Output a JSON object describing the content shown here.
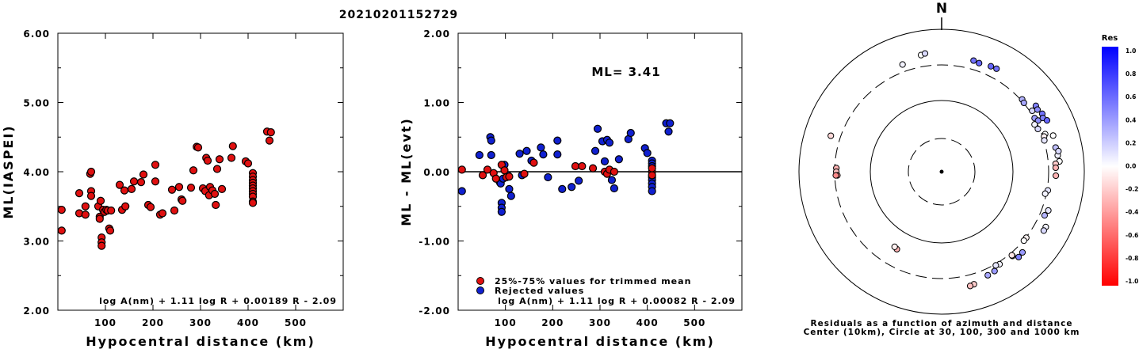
{
  "title": "20210201152729",
  "panel1": {
    "ylabel": "ML(IASPEI)",
    "xlabel": "Hypocentral distance (km)",
    "formula": "log A(nm) + 1.11 log R + 0.00189 R - 2.09",
    "yticks": [
      "6.00",
      "5.00",
      "4.00",
      "3.00",
      "2.00"
    ],
    "xticks": [
      "100",
      "200",
      "300",
      "400",
      "500"
    ]
  },
  "panel2": {
    "ylabel": "ML - ML(evt)",
    "xlabel": "Hypocentral distance (km)",
    "formula": "log A(nm) + 1.11 log R + 0.00082 R - 2.09",
    "ml_label": "ML= 3.41",
    "legend_used": "25%-75% values for trimmed mean",
    "legend_rejected": "Rejected values",
    "yticks": [
      "2.00",
      "1.00",
      "0.00",
      "-1.00",
      "-2.00"
    ],
    "xticks": [
      "100",
      "200",
      "300",
      "400",
      "500"
    ]
  },
  "panel3": {
    "north": "N",
    "caption1": "Residuals as a function of azimuth and distance",
    "caption2": "Center (10km), Circle at 30, 100, 300 and 1000 km",
    "colorbar_title": "Res",
    "colorbar_ticks": [
      "1.0",
      "0.8",
      "0.6",
      "0.4",
      "0.2",
      "0.0",
      "-0.2",
      "-0.4",
      "-0.6",
      "-0.8",
      "-1.0"
    ]
  },
  "colors": {
    "used": "#e01010",
    "rejected": "#1020d0",
    "positive": "#1a1aff",
    "negative": "#ff1a1a"
  },
  "chart_data": [
    {
      "type": "scatter",
      "title": "20210201152729",
      "xlabel": "Hypocentral distance (km)",
      "ylabel": "ML(IASPEI)",
      "xlim": [
        0,
        600
      ],
      "ylim": [
        2.0,
        6.0
      ],
      "series": [
        {
          "points": [
            [
              8,
              3.45
            ],
            [
              8,
              3.15
            ],
            [
              45,
              3.69
            ],
            [
              45,
              3.4
            ],
            [
              58,
              3.38
            ],
            [
              58,
              3.5
            ],
            [
              68,
              3.97
            ],
            [
              70,
              4.0
            ],
            [
              70,
              3.72
            ],
            [
              70,
              3.65
            ],
            [
              85,
              3.5
            ],
            [
              88,
              3.35
            ],
            [
              88,
              3.32
            ],
            [
              90,
              3.58
            ],
            [
              92,
              3.05
            ],
            [
              92,
              2.98
            ],
            [
              92,
              2.93
            ],
            [
              95,
              3.45
            ],
            [
              98,
              3.42
            ],
            [
              102,
              3.45
            ],
            [
              105,
              3.44
            ],
            [
              108,
              3.18
            ],
            [
              110,
              3.15
            ],
            [
              112,
              3.44
            ],
            [
              130,
              3.81
            ],
            [
              135,
              3.45
            ],
            [
              140,
              3.73
            ],
            [
              142,
              3.5
            ],
            [
              155,
              3.75
            ],
            [
              160,
              3.86
            ],
            [
              175,
              3.85
            ],
            [
              180,
              3.96
            ],
            [
              190,
              3.52
            ],
            [
              195,
              3.49
            ],
            [
              205,
              3.86
            ],
            [
              205,
              4.1
            ],
            [
              215,
              3.38
            ],
            [
              220,
              3.4
            ],
            [
              240,
              3.74
            ],
            [
              245,
              3.44
            ],
            [
              255,
              3.78
            ],
            [
              260,
              3.6
            ],
            [
              262,
              3.58
            ],
            [
              280,
              3.77
            ],
            [
              285,
              4.02
            ],
            [
              292,
              4.36
            ],
            [
              295,
              4.35
            ],
            [
              305,
              3.76
            ],
            [
              310,
              3.72
            ],
            [
              312,
              4.2
            ],
            [
              315,
              4.16
            ],
            [
              318,
              3.66
            ],
            [
              320,
              3.78
            ],
            [
              325,
              3.73
            ],
            [
              330,
              3.68
            ],
            [
              332,
              3.52
            ],
            [
              335,
              4.04
            ],
            [
              340,
              4.18
            ],
            [
              345,
              3.75
            ],
            [
              365,
              4.2
            ],
            [
              368,
              4.37
            ],
            [
              395,
              4.15
            ],
            [
              400,
              4.12
            ],
            [
              410,
              3.98
            ],
            [
              410,
              3.93
            ],
            [
              410,
              3.88
            ],
            [
              410,
              3.84
            ],
            [
              410,
              3.8
            ],
            [
              410,
              3.76
            ],
            [
              410,
              3.72
            ],
            [
              410,
              3.68
            ],
            [
              410,
              3.64
            ],
            [
              410,
              3.57
            ],
            [
              410,
              3.55
            ],
            [
              440,
              4.58
            ],
            [
              445,
              4.45
            ],
            [
              448,
              4.57
            ]
          ]
        }
      ]
    },
    {
      "type": "scatter",
      "xlabel": "Hypocentral distance (km)",
      "ylabel": "ML - ML(evt)",
      "xlim": [
        0,
        600
      ],
      "ylim": [
        -2.0,
        2.0
      ],
      "reference_line": 0.0,
      "series": [
        {
          "name": "25%-75% values for trimmed mean",
          "points": [
            [
              8,
              0.03
            ],
            [
              52,
              -0.05
            ],
            [
              62,
              0.03
            ],
            [
              75,
              -0.02
            ],
            [
              80,
              -0.1
            ],
            [
              92,
              0.1
            ],
            [
              98,
              0.02
            ],
            [
              102,
              -0.08
            ],
            [
              108,
              -0.07
            ],
            [
              140,
              -0.03
            ],
            [
              160,
              0.13
            ],
            [
              248,
              0.08
            ],
            [
              262,
              0.08
            ],
            [
              285,
              0.05
            ],
            [
              310,
              0.0
            ],
            [
              315,
              -0.03
            ],
            [
              320,
              0.03
            ],
            [
              330,
              0.0
            ],
            [
              410,
              0.0
            ],
            [
              410,
              -0.05
            ],
            [
              410,
              0.05
            ]
          ]
        },
        {
          "name": "Rejected values",
          "points": [
            [
              8,
              -0.28
            ],
            [
              45,
              0.24
            ],
            [
              68,
              0.5
            ],
            [
              70,
              0.45
            ],
            [
              70,
              0.24
            ],
            [
              88,
              -0.15
            ],
            [
              90,
              -0.17
            ],
            [
              92,
              -0.45
            ],
            [
              92,
              -0.52
            ],
            [
              92,
              -0.58
            ],
            [
              95,
              -0.1
            ],
            [
              98,
              0.1
            ],
            [
              105,
              -0.05
            ],
            [
              108,
              -0.25
            ],
            [
              112,
              -0.35
            ],
            [
              130,
              0.26
            ],
            [
              135,
              -0.05
            ],
            [
              145,
              0.3
            ],
            [
              155,
              0.16
            ],
            [
              175,
              0.35
            ],
            [
              180,
              0.25
            ],
            [
              190,
              -0.08
            ],
            [
              210,
              0.45
            ],
            [
              210,
              0.25
            ],
            [
              220,
              -0.25
            ],
            [
              240,
              -0.22
            ],
            [
              255,
              -0.13
            ],
            [
              290,
              0.3
            ],
            [
              295,
              0.62
            ],
            [
              305,
              0.44
            ],
            [
              310,
              0.15
            ],
            [
              315,
              0.46
            ],
            [
              320,
              0.42
            ],
            [
              325,
              -0.12
            ],
            [
              330,
              -0.24
            ],
            [
              340,
              0.18
            ],
            [
              360,
              0.47
            ],
            [
              365,
              0.56
            ],
            [
              395,
              0.34
            ],
            [
              400,
              0.27
            ],
            [
              410,
              0.16
            ],
            [
              410,
              0.12
            ],
            [
              410,
              0.08
            ],
            [
              410,
              -0.08
            ],
            [
              410,
              -0.12
            ],
            [
              410,
              -0.17
            ],
            [
              410,
              -0.22
            ],
            [
              410,
              -0.28
            ],
            [
              440,
              0.7
            ],
            [
              445,
              0.58
            ],
            [
              448,
              0.7
            ]
          ]
        }
      ]
    },
    {
      "type": "scatter",
      "subtype": "polar_residual_map",
      "rings_km": [
        30,
        100,
        300,
        1000
      ],
      "center_km": 10,
      "color_scale": [
        -1.0,
        1.0
      ],
      "points": [
        {
          "az": 350,
          "dist": 460,
          "res": 0.0
        },
        {
          "az": 352,
          "dist": 475,
          "res": 0.15
        },
        {
          "az": 340,
          "dist": 400,
          "res": 0.05
        },
        {
          "az": 288,
          "dist": 430,
          "res": -0.15
        },
        {
          "az": 272,
          "dist": 300,
          "res": -0.3
        },
        {
          "az": 270,
          "dist": 300,
          "res": -0.25
        },
        {
          "az": 268,
          "dist": 290,
          "res": -0.4
        },
        {
          "az": 268,
          "dist": 305,
          "res": -0.45
        },
        {
          "az": 16,
          "dist": 420,
          "res": 0.55
        },
        {
          "az": 19,
          "dist": 410,
          "res": 0.6
        },
        {
          "az": 25,
          "dist": 430,
          "res": 0.6
        },
        {
          "az": 28,
          "dist": 435,
          "res": 0.55
        },
        {
          "az": 48,
          "dist": 330,
          "res": 0.3
        },
        {
          "az": 50,
          "dist": 320,
          "res": 0.35
        },
        {
          "az": 56,
          "dist": 340,
          "res": 0.15
        },
        {
          "az": 60,
          "dist": 320,
          "res": 0.4
        },
        {
          "az": 62,
          "dist": 340,
          "res": 0.45
        },
        {
          "az": 63,
          "dist": 290,
          "res": 0.05
        },
        {
          "az": 66,
          "dist": 300,
          "res": 0.15
        },
        {
          "az": 70,
          "dist": 350,
          "res": 0.0
        },
        {
          "az": 71,
          "dist": 330,
          "res": -0.05
        },
        {
          "az": 73,
          "dist": 320,
          "res": 0.1
        },
        {
          "az": 55,
          "dist": 410,
          "res": 0.5
        },
        {
          "az": 57,
          "dist": 400,
          "res": 0.45
        },
        {
          "az": 60,
          "dist": 425,
          "res": 0.55
        },
        {
          "az": 62,
          "dist": 405,
          "res": 0.5
        },
        {
          "az": 64,
          "dist": 440,
          "res": 0.6
        },
        {
          "az": 72,
          "dist": 440,
          "res": 0.0
        },
        {
          "az": 78,
          "dist": 430,
          "res": 0.25
        },
        {
          "az": 82,
          "dist": 440,
          "res": 0.05
        },
        {
          "az": 85,
          "dist": 455,
          "res": 0.0
        },
        {
          "az": 86,
          "dist": 400,
          "res": -0.2
        },
        {
          "az": 88,
          "dist": 398,
          "res": -0.3
        },
        {
          "az": 92,
          "dist": 400,
          "res": -0.3
        },
        {
          "az": 80,
          "dist": 460,
          "res": 0.15
        },
        {
          "az": 100,
          "dist": 325,
          "res": 0.1
        },
        {
          "az": 102,
          "dist": 305,
          "res": 0.05
        },
        {
          "az": 110,
          "dist": 390,
          "res": 0.1
        },
        {
          "az": 113,
          "dist": 370,
          "res": 0.3
        },
        {
          "az": 118,
          "dist": 450,
          "res": 0.05
        },
        {
          "az": 120,
          "dist": 450,
          "res": 0.15
        },
        {
          "az": 128,
          "dist": 320,
          "res": -0.05
        },
        {
          "az": 130,
          "dist": 320,
          "res": 0.0
        },
        {
          "az": 140,
          "dist": 350,
          "res": 0.15
        },
        {
          "az": 140,
          "dist": 340,
          "res": -0.1
        },
        {
          "az": 148,
          "dist": 340,
          "res": 0.05
        },
        {
          "az": 150,
          "dist": 330,
          "res": 0.1
        },
        {
          "az": 135,
          "dist": 400,
          "res": 0.4
        },
        {
          "az": 138,
          "dist": 410,
          "res": 0.5
        },
        {
          "az": 152,
          "dist": 380,
          "res": 0.4
        },
        {
          "az": 156,
          "dist": 390,
          "res": 0.35
        },
        {
          "az": 164,
          "dist": 440,
          "res": -0.2
        },
        {
          "az": 166,
          "dist": 450,
          "res": -0.25
        },
        {
          "az": 210,
          "dist": 180,
          "res": -0.3
        },
        {
          "az": 212,
          "dist": 175,
          "res": -0.05
        }
      ]
    }
  ]
}
